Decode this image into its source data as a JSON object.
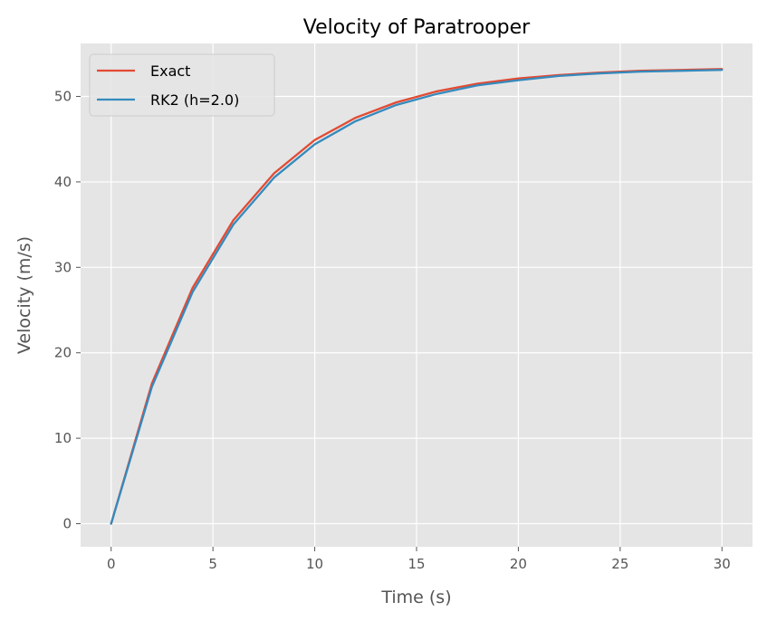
{
  "chart_data": {
    "type": "line",
    "title": "Velocity of Paratrooper",
    "xlabel": "Time (s)",
    "ylabel": "Velocity (m/s)",
    "xlim": [
      -1.5,
      31.5
    ],
    "ylim": [
      -2.7,
      56.2
    ],
    "xticks": [
      0,
      5,
      10,
      15,
      20,
      25,
      30
    ],
    "yticks": [
      0,
      10,
      20,
      30,
      40,
      50
    ],
    "grid": true,
    "legend_position": "top-left",
    "x": [
      0,
      2,
      4,
      6,
      8,
      10,
      12,
      14,
      16,
      18,
      20,
      22,
      24,
      26,
      28,
      30
    ],
    "series": [
      {
        "name": "Exact",
        "color": "#E24A33",
        "values": [
          0,
          16.4,
          27.6,
          35.5,
          41.0,
          44.9,
          47.5,
          49.3,
          50.6,
          51.5,
          52.1,
          52.5,
          52.8,
          53.0,
          53.1,
          53.2
        ]
      },
      {
        "name": "RK2 (h=2.0)",
        "color": "#348ABD",
        "values": [
          0,
          16.0,
          27.1,
          35.0,
          40.5,
          44.4,
          47.1,
          49.0,
          50.3,
          51.3,
          51.9,
          52.4,
          52.7,
          52.9,
          53.0,
          53.1
        ]
      }
    ]
  }
}
